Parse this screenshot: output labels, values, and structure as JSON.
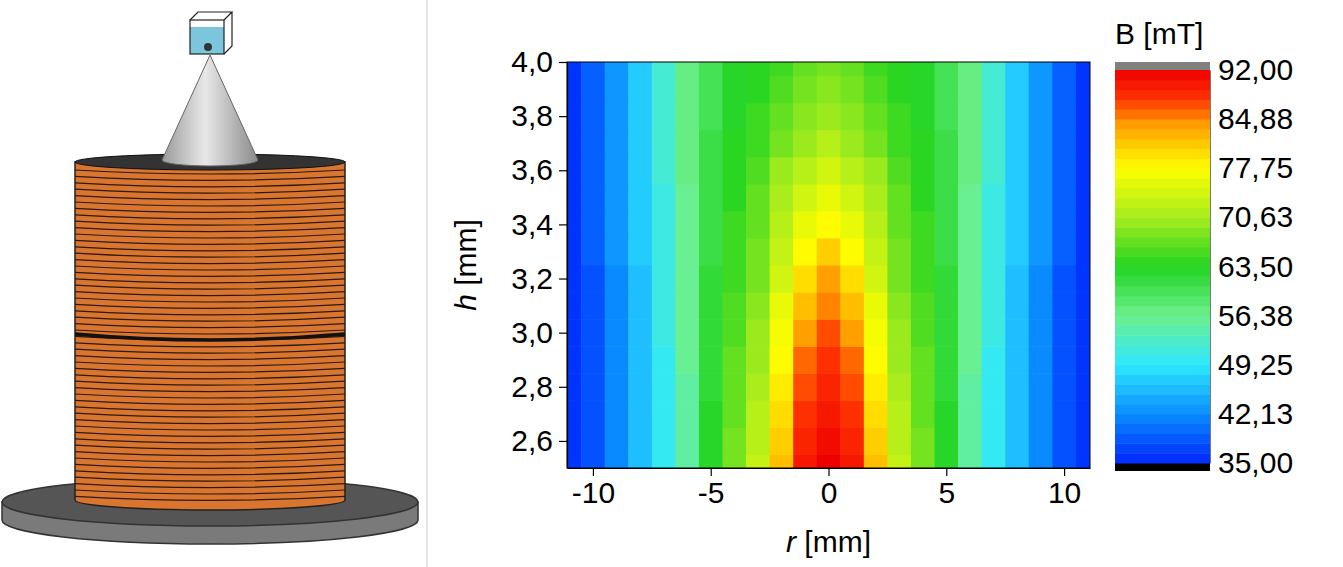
{
  "chart_data": {
    "type": "heatmap",
    "x_label": "r [mm]",
    "y_label": "h [mm]",
    "x": [
      -11,
      -10,
      -9,
      -8,
      -7,
      -6,
      -5,
      -4,
      -3,
      -2,
      -1,
      0,
      1,
      2,
      3,
      4,
      5,
      6,
      7,
      8,
      9,
      10,
      11
    ],
    "y": [
      2.5,
      2.6,
      2.7,
      2.8,
      2.9,
      3.0,
      3.1,
      3.2,
      3.3,
      3.4,
      3.5,
      3.6,
      3.7,
      3.8,
      3.9,
      4.0
    ],
    "values": [
      [
        36,
        38,
        42,
        46,
        50,
        55,
        63,
        68,
        73,
        82,
        90,
        92,
        90,
        82,
        73,
        68,
        63,
        55,
        50,
        46,
        42,
        38,
        36
      ],
      [
        36,
        38,
        42,
        46,
        50,
        55,
        63,
        68,
        72,
        81,
        89,
        91,
        89,
        81,
        72,
        68,
        63,
        55,
        50,
        46,
        42,
        38,
        36
      ],
      [
        36,
        38,
        42,
        46,
        50,
        55,
        63,
        67,
        72,
        80,
        88,
        90,
        88,
        80,
        72,
        67,
        63,
        55,
        50,
        46,
        42,
        38,
        36
      ],
      [
        36,
        38,
        42,
        46,
        50,
        55,
        62,
        67,
        71,
        79,
        87,
        89,
        87,
        79,
        71,
        67,
        62,
        55,
        50,
        46,
        42,
        38,
        36
      ],
      [
        36,
        38,
        42,
        46,
        50,
        56,
        62,
        67,
        70,
        78,
        86,
        88,
        86,
        78,
        70,
        67,
        62,
        56,
        50,
        46,
        42,
        38,
        36
      ],
      [
        36,
        38,
        42,
        46,
        51,
        56,
        62,
        66,
        70,
        77,
        84,
        87,
        84,
        77,
        70,
        66,
        62,
        56,
        51,
        46,
        42,
        38,
        36
      ],
      [
        36,
        38,
        42,
        46,
        51,
        56,
        62,
        66,
        69,
        76,
        82,
        85,
        82,
        76,
        69,
        66,
        62,
        56,
        51,
        46,
        42,
        38,
        36
      ],
      [
        36,
        38,
        42,
        46,
        51,
        56,
        62,
        65,
        68,
        74,
        80,
        84,
        80,
        74,
        68,
        65,
        62,
        56,
        51,
        46,
        42,
        38,
        36
      ],
      [
        36,
        39,
        43,
        47,
        51,
        56,
        61,
        65,
        68,
        73,
        78,
        81,
        78,
        73,
        68,
        65,
        61,
        56,
        51,
        47,
        43,
        39,
        36
      ],
      [
        36,
        39,
        43,
        47,
        51,
        56,
        61,
        65,
        67,
        72,
        76,
        78,
        76,
        72,
        67,
        65,
        61,
        56,
        51,
        47,
        43,
        39,
        36
      ],
      [
        36,
        39,
        43,
        47,
        51,
        56,
        61,
        64,
        67,
        71,
        74,
        76,
        74,
        71,
        67,
        64,
        61,
        56,
        51,
        47,
        43,
        39,
        36
      ],
      [
        36,
        39,
        43,
        47,
        52,
        57,
        61,
        64,
        66,
        70,
        72,
        74,
        72,
        70,
        66,
        64,
        61,
        57,
        52,
        47,
        43,
        39,
        36
      ],
      [
        36,
        39,
        43,
        47,
        52,
        57,
        61,
        64,
        65,
        68,
        70,
        72,
        70,
        68,
        65,
        64,
        61,
        57,
        52,
        47,
        43,
        39,
        36
      ],
      [
        36,
        39,
        43,
        47,
        52,
        57,
        60,
        63,
        65,
        67,
        69,
        70,
        69,
        67,
        65,
        63,
        60,
        57,
        52,
        47,
        43,
        39,
        36
      ],
      [
        36,
        39,
        43,
        47,
        52,
        57,
        60,
        63,
        64,
        66,
        68,
        69,
        68,
        66,
        64,
        63,
        60,
        57,
        52,
        47,
        43,
        39,
        36
      ],
      [
        36,
        39,
        43,
        47,
        52,
        57,
        60,
        63,
        64,
        65,
        67,
        68,
        67,
        65,
        64,
        63,
        60,
        57,
        52,
        47,
        43,
        39,
        36
      ]
    ],
    "xlim": [
      -11.1,
      11.1
    ],
    "ylim": [
      2.5,
      4.0
    ],
    "xticks": [
      -10,
      -5,
      0,
      5,
      10
    ],
    "yticks": [
      {
        "value": 2.6,
        "label": "2,6"
      },
      {
        "value": 2.8,
        "label": "2,8"
      },
      {
        "value": 3.0,
        "label": "3,0"
      },
      {
        "value": 3.2,
        "label": "3,2"
      },
      {
        "value": 3.4,
        "label": "3,4"
      },
      {
        "value": 3.6,
        "label": "3,6"
      },
      {
        "value": 3.8,
        "label": "3,8"
      },
      {
        "value": 4.0,
        "label": "4,0"
      }
    ],
    "colorbar": {
      "title": "B [mT]",
      "range": [
        35,
        92
      ],
      "ticks": [
        {
          "value": 35,
          "label": "35,00"
        },
        {
          "value": 42.13,
          "label": "42,13"
        },
        {
          "value": 49.25,
          "label": "49,25"
        },
        {
          "value": 56.38,
          "label": "56,38"
        },
        {
          "value": 63.5,
          "label": "63,50"
        },
        {
          "value": 70.63,
          "label": "70,63"
        },
        {
          "value": 77.75,
          "label": "77,75"
        },
        {
          "value": 84.88,
          "label": "84,88"
        },
        {
          "value": 92,
          "label": "92,00"
        }
      ]
    }
  }
}
